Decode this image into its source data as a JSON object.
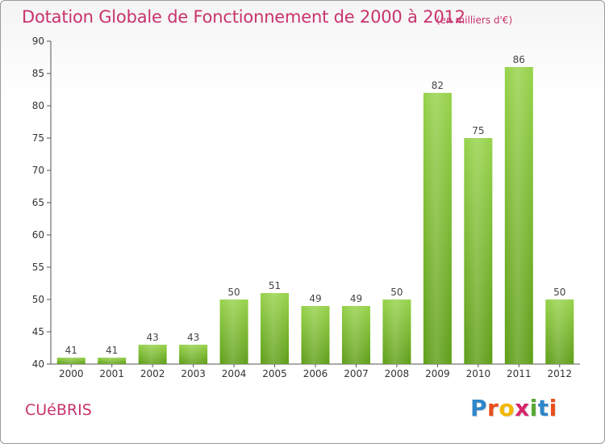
{
  "header": {
    "title": "Dotation Globale de Fonctionnement de 2000 à 2012",
    "unit": "(en milliers d'€)"
  },
  "footer": {
    "commune": "CUéBRIS",
    "logo_letters": [
      "P",
      "r",
      "o",
      "x",
      "i",
      "t",
      "i"
    ],
    "logo_colors": [
      "#2e86c8",
      "#e94e1b",
      "#f3b700",
      "#d6256b",
      "#58a834",
      "#2e86c8",
      "#e94e1b"
    ]
  },
  "chart_data": {
    "type": "bar",
    "title": "Dotation Globale de Fonctionnement de 2000 à 2012",
    "subtitle": "(en milliers d'€)",
    "categories": [
      "2000",
      "2001",
      "2002",
      "2003",
      "2004",
      "2005",
      "2006",
      "2007",
      "2008",
      "2009",
      "2010",
      "2011",
      "2012"
    ],
    "values": [
      41,
      41,
      43,
      43,
      50,
      51,
      49,
      49,
      50,
      82,
      75,
      86,
      50
    ],
    "value_labels": [
      "41",
      "41",
      "43",
      "43",
      "50",
      "51",
      "49",
      "49",
      "50",
      "82",
      "75",
      "86",
      "50"
    ],
    "ylim": [
      40,
      90
    ],
    "yticks": [
      40,
      45,
      50,
      55,
      60,
      65,
      70,
      75,
      80,
      85,
      90
    ],
    "ytick_labels": [
      "40",
      "45",
      "50",
      "55",
      "60",
      "65",
      "70",
      "75",
      "80",
      "85",
      "90"
    ],
    "grid": false,
    "legend": "none",
    "bar_color": "#7cc030",
    "bar_color_dark": "#5e9a1c",
    "label_color": "#444444"
  }
}
